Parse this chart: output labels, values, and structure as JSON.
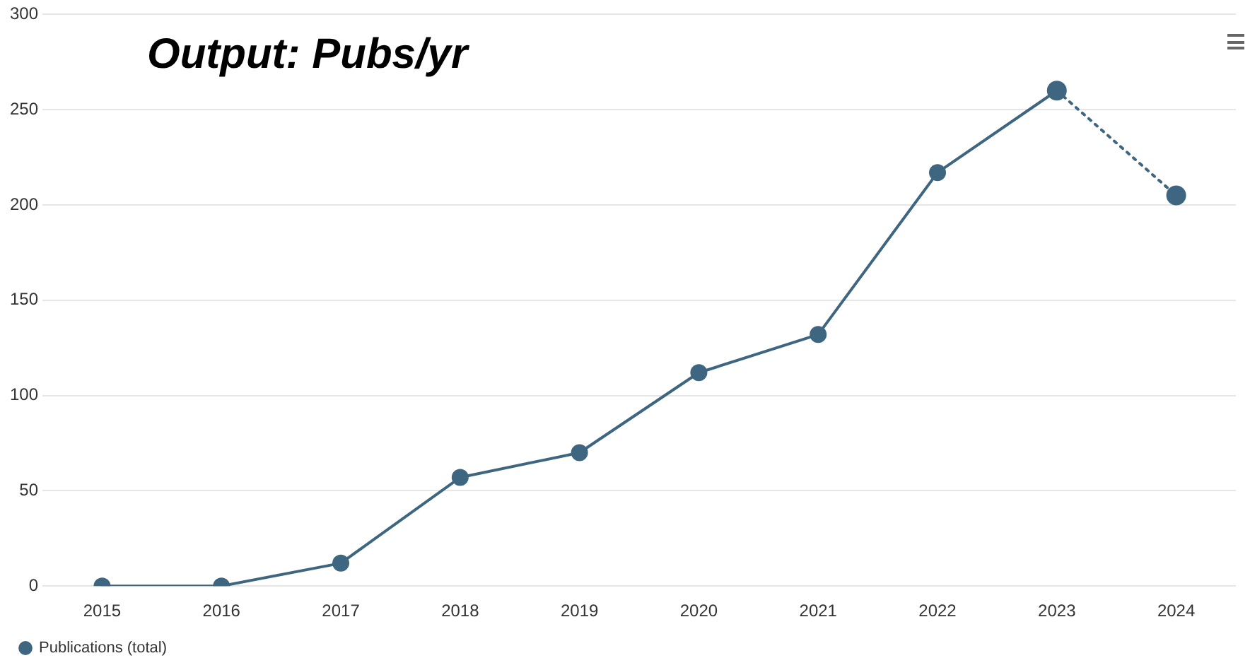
{
  "chart_data": {
    "type": "line",
    "title": "Output: Pubs/yr",
    "categories": [
      "2015",
      "2016",
      "2017",
      "2018",
      "2019",
      "2020",
      "2021",
      "2022",
      "2023",
      "2024"
    ],
    "series": [
      {
        "name": "Publications (total)",
        "color": "#3e6680",
        "values": [
          0,
          0,
          12,
          57,
          70,
          112,
          132,
          217,
          260,
          null
        ]
      },
      {
        "color": "#3e6680",
        "line_style": "dotted",
        "values": [
          null,
          null,
          null,
          null,
          null,
          null,
          null,
          null,
          260,
          205
        ]
      }
    ],
    "ylim": [
      0,
      300
    ],
    "yticks": [
      0,
      50,
      100,
      150,
      200,
      250,
      300
    ],
    "grid": "y",
    "legend": "bottom left",
    "marker": "circle",
    "line_style": "solid"
  }
}
